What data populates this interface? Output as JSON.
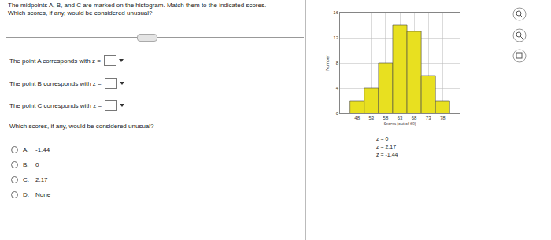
{
  "question": "The midpoints A, B, and C are marked on the histogram. Match them to the indicated scores. Which scores, if any, would be considered unusual?",
  "prompts": [
    "The point A corresponds with z =",
    "The point B corresponds with z =",
    "The point C corresponds with z ="
  ],
  "sub_question": "Which scores, if any, would be considered unusual?",
  "options": [
    {
      "letter": "A.",
      "text": "-1.44"
    },
    {
      "letter": "B.",
      "text": "0"
    },
    {
      "letter": "C.",
      "text": "2.17"
    },
    {
      "letter": "D.",
      "text": "None"
    }
  ],
  "z_choices": [
    "z = 0",
    "z = 2.17",
    "z = -1.44"
  ],
  "chart_data": {
    "type": "histogram",
    "bins": [
      45.5,
      50.5,
      55.5,
      60.5,
      65.5,
      70.5,
      75.5,
      80.5
    ],
    "counts": [
      2,
      4,
      8,
      14,
      13,
      6,
      2
    ],
    "color": "#e8e020",
    "xlabel": "Scores (out of 60)",
    "ylabel": "Number",
    "xlim": [
      42,
      84
    ],
    "ylim": [
      0,
      16
    ],
    "xticks": [
      48,
      53,
      58,
      63,
      68,
      73,
      78
    ],
    "yticks": [
      0,
      4,
      8,
      12,
      16
    ],
    "grid": true
  }
}
